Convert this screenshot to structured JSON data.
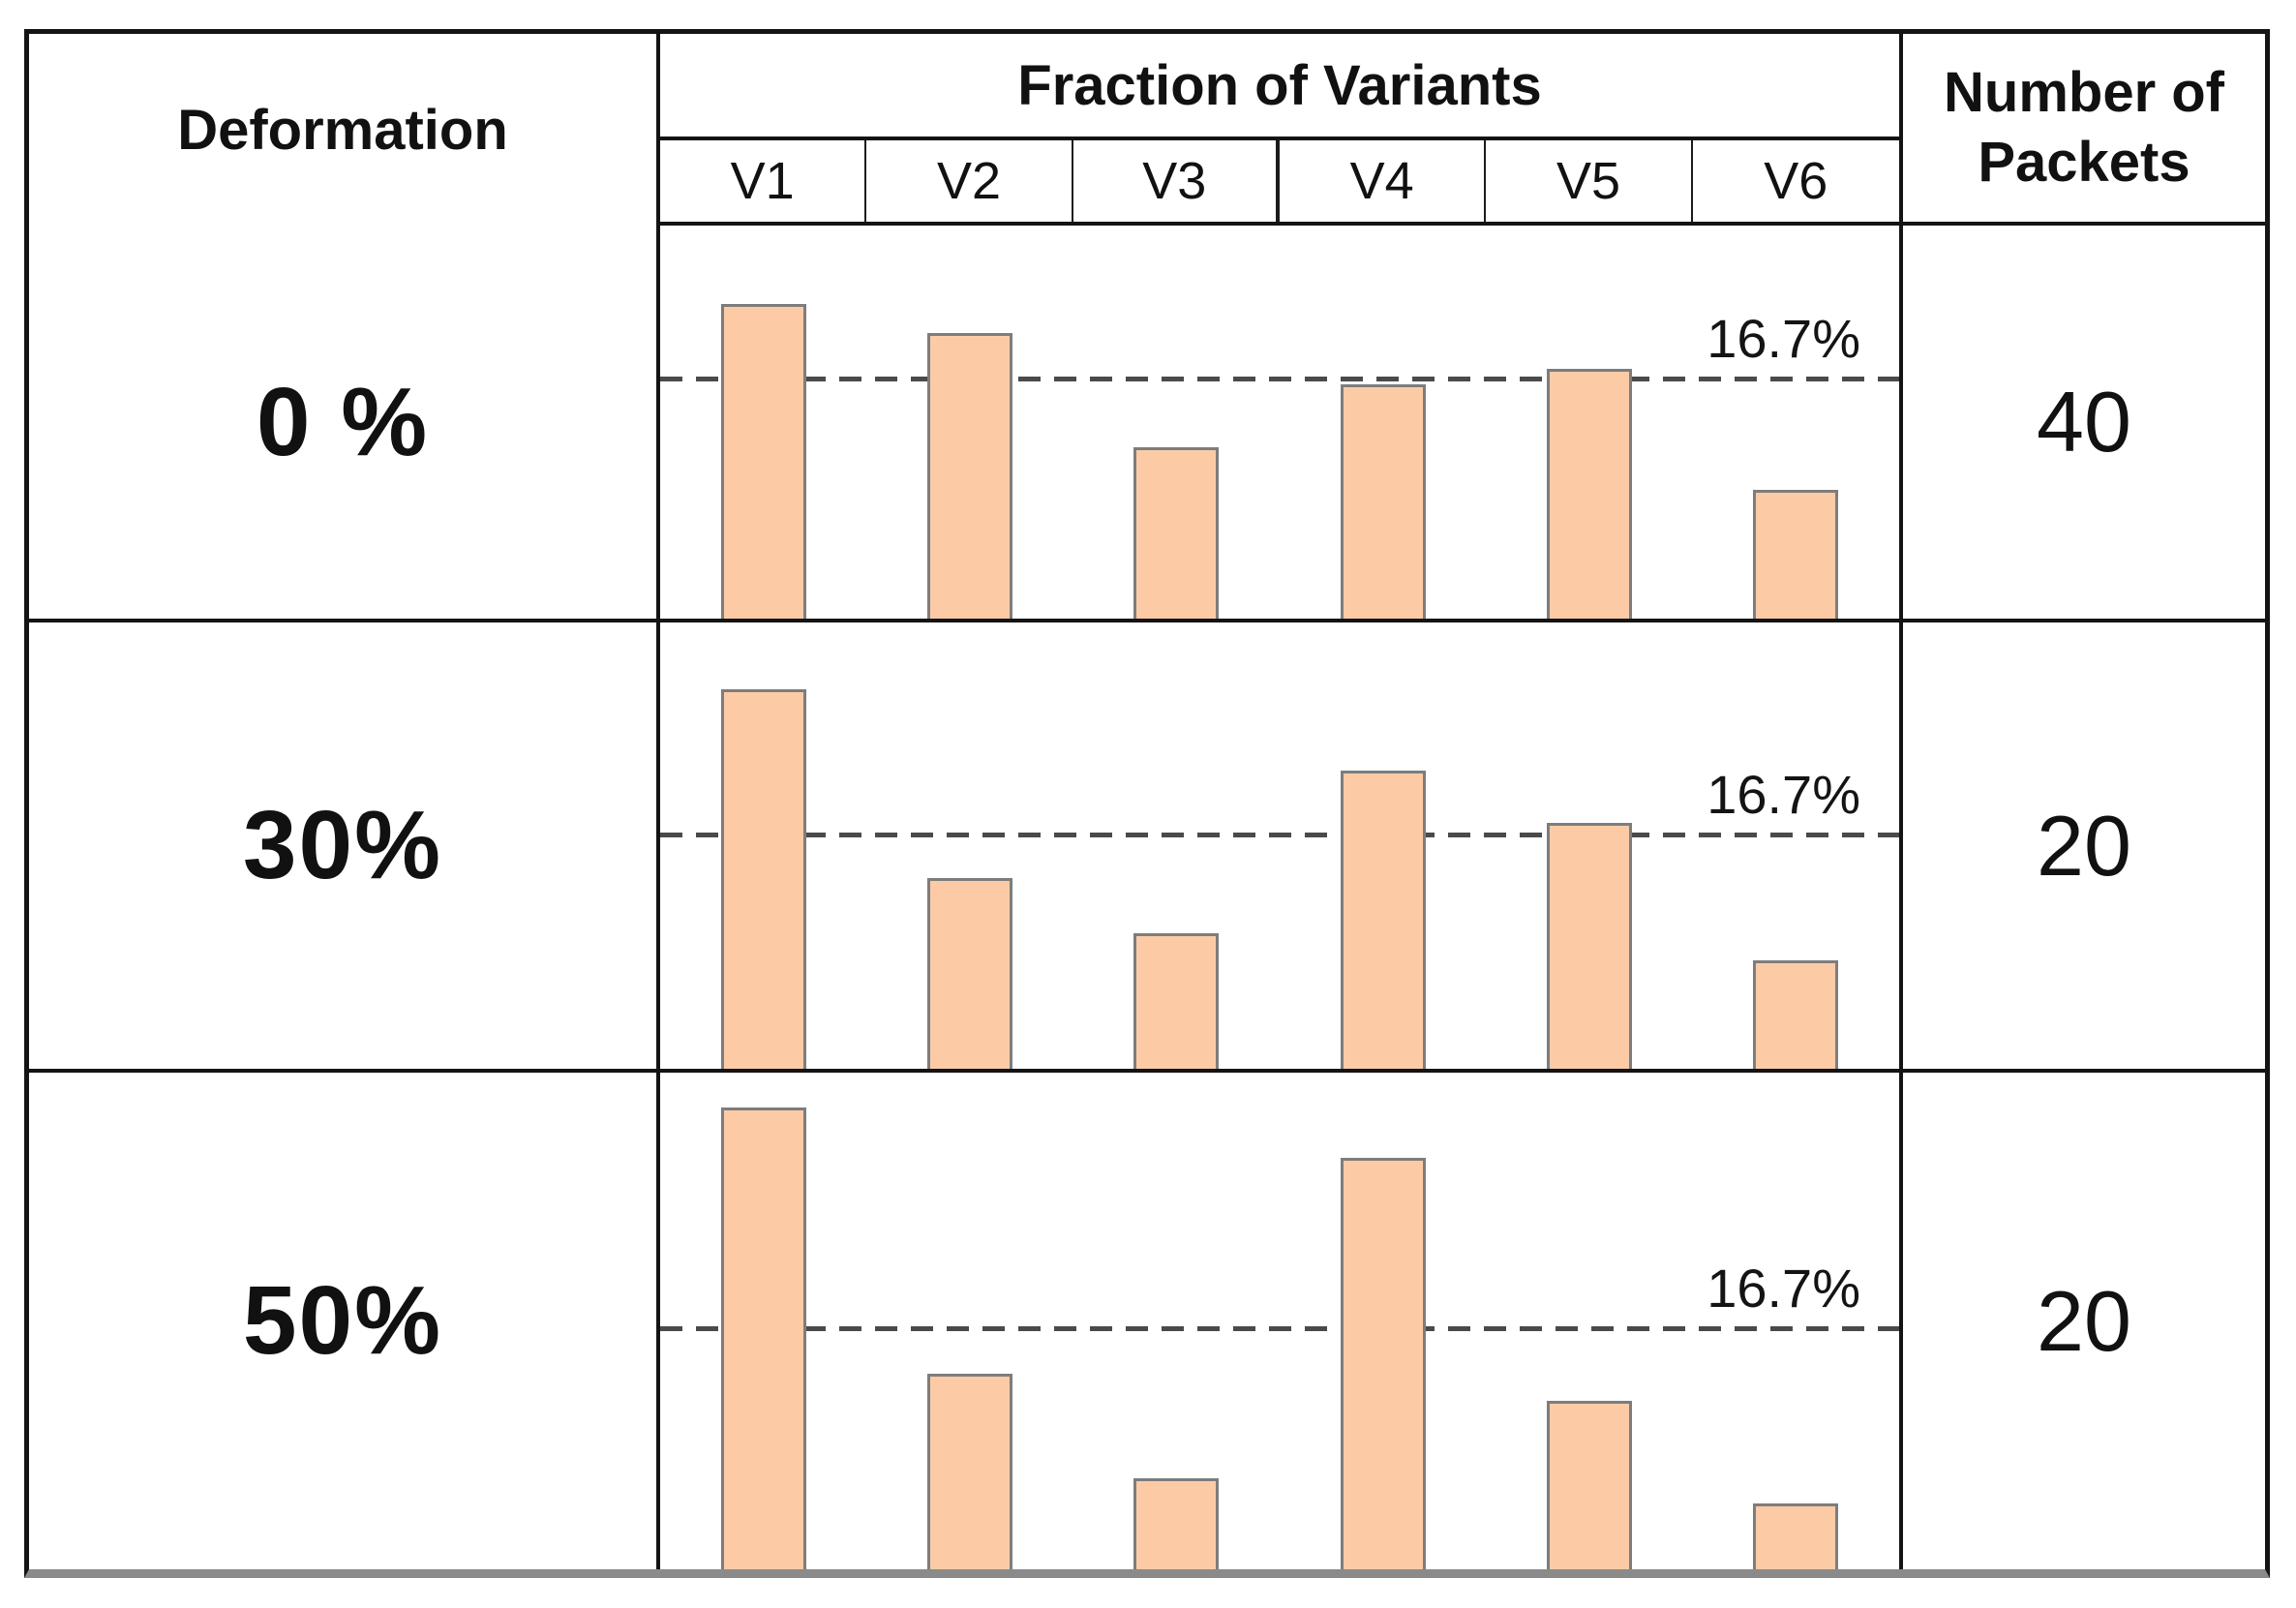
{
  "table": {
    "header": {
      "deformation": "Deformation",
      "fraction_of_variants": "Fraction of Variants",
      "number_of_packets": "Number of Packets",
      "variants": [
        "V1",
        "V2",
        "V3",
        "V4",
        "V5",
        "V6"
      ]
    },
    "rows": [
      {
        "deformation": "0 %",
        "packets": "40"
      },
      {
        "deformation": "30%",
        "packets": "20"
      },
      {
        "deformation": "50%",
        "packets": "20"
      }
    ]
  },
  "chart_data": [
    {
      "type": "bar",
      "title": "Fraction of variants at 0% deformation",
      "categories": [
        "V1",
        "V2",
        "V3",
        "V4",
        "V5",
        "V6"
      ],
      "values": [
        22,
        20,
        12,
        16.4,
        17.5,
        9
      ],
      "unit": "percent",
      "reference_line": 16.7,
      "reference_label": "16.7%",
      "ylim": [
        0,
        27.5
      ],
      "number_of_packets": 40,
      "grid": "off",
      "legend": "none"
    },
    {
      "type": "bar",
      "title": "Fraction of variants at 30% deformation",
      "categories": [
        "V1",
        "V2",
        "V3",
        "V4",
        "V5",
        "V6"
      ],
      "values": [
        27.2,
        13.7,
        9.7,
        21.4,
        17.6,
        7.8
      ],
      "unit": "percent",
      "reference_line": 16.7,
      "reference_label": "16.7%",
      "ylim": [
        0,
        32
      ],
      "number_of_packets": 20,
      "grid": "off",
      "legend": "none"
    },
    {
      "type": "bar",
      "title": "Fraction of variants at 50% deformation",
      "categories": [
        "V1",
        "V2",
        "V3",
        "V4",
        "V5",
        "V6"
      ],
      "values": [
        32.1,
        13.6,
        6.3,
        28.6,
        11.7,
        4.6
      ],
      "unit": "percent",
      "reference_line": 16.7,
      "reference_label": "16.7%",
      "ylim": [
        0,
        34.5
      ],
      "number_of_packets": 20,
      "grid": "off",
      "legend": "none"
    }
  ],
  "colors": {
    "bar_fill": "#FCCBA6",
    "bar_border": "#7D7D7D",
    "reference_line": "#4A4A4A",
    "table_border": "#141414",
    "bottom_rule": "#8A8A8A"
  }
}
